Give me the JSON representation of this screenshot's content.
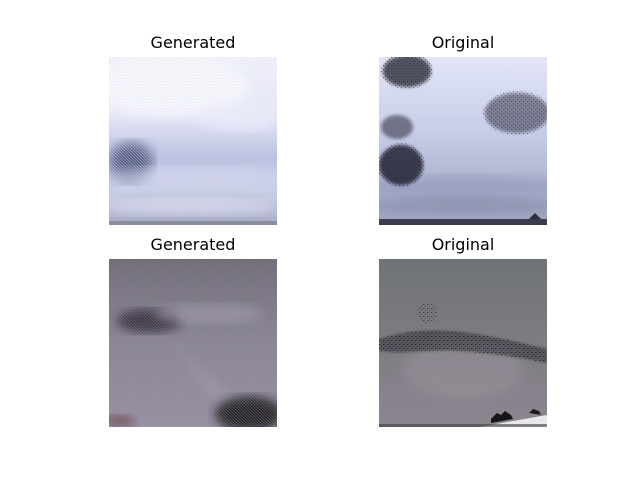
{
  "figure": {
    "panels": [
      {
        "title": "Generated"
      },
      {
        "title": "Original"
      },
      {
        "title": "Generated"
      },
      {
        "title": "Original"
      }
    ]
  }
}
